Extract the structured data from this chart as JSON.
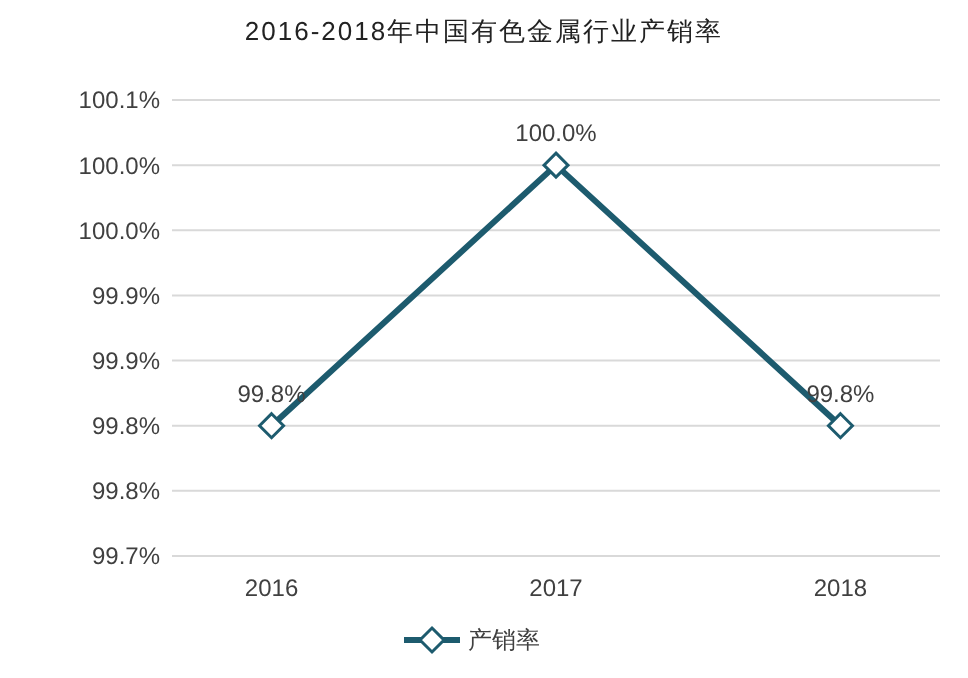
{
  "chart_data": {
    "type": "line",
    "title": "2016-2018年中国有色金属行业产销率",
    "categories": [
      "2016",
      "2017",
      "2018"
    ],
    "series": [
      {
        "name": "产销率",
        "color": "#1d5b6e",
        "values": [
          99.8,
          100,
          99.8
        ],
        "value_labels": [
          "99.8%",
          "100.0%",
          "99.8%"
        ]
      }
    ],
    "ylim": [
      99.7,
      100.05
    ],
    "yticks": [
      {
        "value": 99.7,
        "label": "99.7%"
      },
      {
        "value": 99.75,
        "label": "99.8%"
      },
      {
        "value": 99.8,
        "label": "99.8%"
      },
      {
        "value": 99.85,
        "label": "99.9%"
      },
      {
        "value": 99.9,
        "label": "99.9%"
      },
      {
        "value": 99.95,
        "label": "100.0%"
      },
      {
        "value": 100,
        "label": "100.0%"
      },
      {
        "value": 100.05,
        "label": "100.1%"
      }
    ],
    "grid": "y",
    "legend": "bottom",
    "marker": "diamond",
    "line_style": "solid"
  }
}
